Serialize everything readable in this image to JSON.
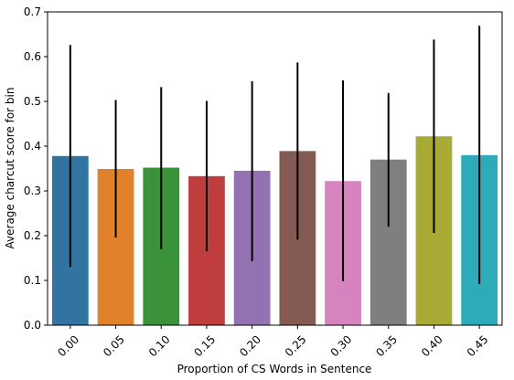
{
  "chart_data": {
    "type": "bar",
    "xlabel": "Proportion of CS Words in Sentence",
    "ylabel": "Average charcut score for bin",
    "ylim": [
      0,
      0.7
    ],
    "yticks": [
      0.0,
      0.1,
      0.2,
      0.3,
      0.4,
      0.5,
      0.6,
      0.7
    ],
    "ytick_labels": [
      "0.0",
      "0.1",
      "0.2",
      "0.3",
      "0.4",
      "0.5",
      "0.6",
      "0.7"
    ],
    "categories": [
      "0.00",
      "0.05",
      "0.10",
      "0.15",
      "0.20",
      "0.25",
      "0.30",
      "0.35",
      "0.40",
      "0.45"
    ],
    "values": [
      0.378,
      0.349,
      0.352,
      0.333,
      0.345,
      0.389,
      0.322,
      0.37,
      0.422,
      0.38
    ],
    "error_low": [
      0.13,
      0.196,
      0.17,
      0.165,
      0.143,
      0.191,
      0.098,
      0.22,
      0.206,
      0.092
    ],
    "error_high": [
      0.626,
      0.503,
      0.532,
      0.501,
      0.545,
      0.587,
      0.547,
      0.519,
      0.638,
      0.669
    ],
    "colors": [
      "#3274a1",
      "#e1812c",
      "#3a923a",
      "#c03d3e",
      "#9372b2",
      "#845b53",
      "#d684bd",
      "#7f7f7f",
      "#a9aa35",
      "#2eabb8"
    ],
    "grid": false
  }
}
